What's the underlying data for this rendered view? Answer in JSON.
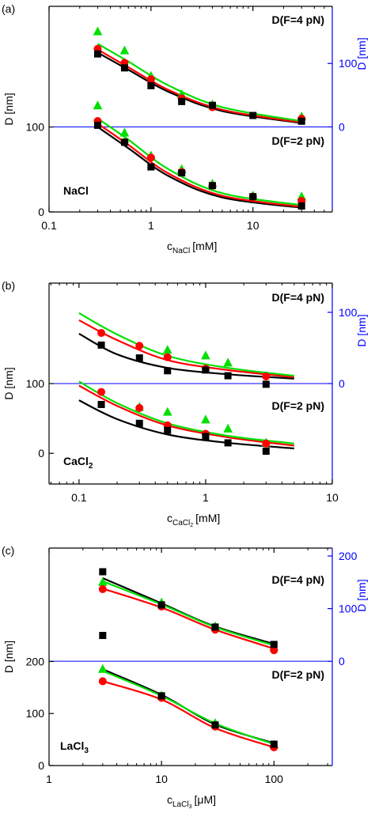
{
  "chart_data": [
    {
      "type": "scatter",
      "panel_label": "(a)",
      "xlabel": "c",
      "xlabel_sub": "NaCl",
      "xlabel_unit": "[mM]",
      "ylabel": "D [nm]",
      "y2label": "D [nm]",
      "annotations": [
        "D(F=4 pN)",
        "D(F=2 pN)"
      ],
      "salt": "NaCl",
      "salt_sub": "",
      "xscale": "log",
      "xlim": [
        0.1,
        60
      ],
      "xticks": [
        0.1,
        1,
        10
      ],
      "ylim": [
        0,
        242
      ],
      "yticks": [
        0,
        100
      ],
      "y2lim": [
        -134,
        190
      ],
      "y2ticks": [
        0,
        100
      ],
      "y2color": "#0000ff",
      "reference_line": 0,
      "series": [
        {
          "axis": "y",
          "marker": "line",
          "color": "#000000",
          "x": [
            0.3,
            0.6,
            1.5,
            5,
            30
          ],
          "values": [
            100,
            75,
            42,
            17,
            5
          ]
        },
        {
          "axis": "y",
          "marker": "line",
          "color": "#ff0000",
          "x": [
            0.3,
            0.6,
            1.5,
            5,
            30
          ],
          "values": [
            104,
            79,
            45,
            19,
            6
          ]
        },
        {
          "axis": "y",
          "marker": "line",
          "color": "#00e000",
          "x": [
            0.3,
            0.6,
            1.5,
            5,
            30
          ],
          "values": [
            110,
            85,
            50,
            22,
            8
          ]
        },
        {
          "axis": "y2",
          "marker": "line",
          "color": "#000000",
          "x": [
            0.3,
            0.6,
            1.5,
            5,
            30
          ],
          "values": [
            117,
            90,
            55,
            25,
            6
          ]
        },
        {
          "axis": "y2",
          "marker": "line",
          "color": "#ff0000",
          "x": [
            0.3,
            0.6,
            1.5,
            5,
            30
          ],
          "values": [
            122,
            94,
            58,
            27,
            7
          ]
        },
        {
          "axis": "y2",
          "marker": "line",
          "color": "#00e000",
          "x": [
            0.3,
            0.6,
            1.5,
            5,
            30
          ],
          "values": [
            131,
            103,
            65,
            31,
            9
          ]
        },
        {
          "axis": "y",
          "marker": "triangle",
          "color": "#00e000",
          "x": [
            0.3,
            0.55,
            1,
            2,
            4,
            10,
            30
          ],
          "values": [
            125,
            93,
            66,
            50,
            33,
            19,
            18
          ]
        },
        {
          "axis": "y",
          "marker": "circle",
          "color": "#ff0000",
          "x": [
            0.3,
            0.55,
            1,
            2,
            4,
            10,
            30
          ],
          "values": [
            107,
            82,
            64,
            47,
            31,
            18,
            13
          ]
        },
        {
          "axis": "y",
          "marker": "square",
          "color": "#000000",
          "x": [
            0.3,
            0.55,
            1,
            2,
            4,
            10,
            30
          ],
          "values": [
            102,
            82,
            53,
            46,
            31,
            18,
            7
          ]
        },
        {
          "axis": "y2",
          "marker": "triangle",
          "color": "#00e000",
          "x": [
            0.3,
            0.55,
            1,
            2,
            4,
            30
          ],
          "values": [
            150,
            120,
            80,
            51,
            35,
            16
          ]
        },
        {
          "axis": "y2",
          "marker": "circle",
          "color": "#ff0000",
          "x": [
            0.3,
            0.55,
            1,
            2,
            4,
            30
          ],
          "values": [
            123,
            101,
            75,
            45,
            31,
            13
          ]
        },
        {
          "axis": "y2",
          "marker": "square",
          "color": "#000000",
          "x": [
            0.3,
            0.55,
            1,
            2,
            4,
            10,
            30
          ],
          "values": [
            115,
            93,
            65,
            40,
            34,
            18,
            9
          ]
        }
      ]
    },
    {
      "type": "scatter",
      "panel_label": "(b)",
      "xlabel": "c",
      "xlabel_sub": "CaCl",
      "xlabel_subsub": "2",
      "xlabel_unit": "[mM]",
      "ylabel": "D [nm]",
      "y2label": "D [nm]",
      "annotations": [
        "D(F=4 pN)",
        "D(F=2 pN)"
      ],
      "salt": "CaCl",
      "salt_sub": "2",
      "xscale": "log",
      "xlim": [
        0.058,
        10
      ],
      "xticks": [
        0.1,
        1,
        10
      ],
      "ylim": [
        -44,
        244
      ],
      "yticks": [
        0,
        100
      ],
      "y2lim": [
        -141,
        141
      ],
      "y2ticks": [
        0,
        100
      ],
      "y2color": "#0000ff",
      "reference_line": 0,
      "series": [
        {
          "axis": "y",
          "marker": "line",
          "color": "#000000",
          "x": [
            0.1,
            0.2,
            0.5,
            1.5,
            5
          ],
          "values": [
            76,
            49,
            27,
            15,
            7
          ]
        },
        {
          "axis": "y",
          "marker": "line",
          "color": "#ff0000",
          "x": [
            0.1,
            0.2,
            0.5,
            1.5,
            5
          ],
          "values": [
            97,
            68,
            40,
            23,
            11
          ]
        },
        {
          "axis": "y",
          "marker": "line",
          "color": "#00e000",
          "x": [
            0.1,
            0.2,
            0.5,
            1.5,
            5
          ],
          "values": [
            103,
            72,
            43,
            25,
            14
          ]
        },
        {
          "axis": "y2",
          "marker": "line",
          "color": "#000000",
          "x": [
            0.1,
            0.2,
            0.5,
            1.5,
            5
          ],
          "values": [
            70,
            41,
            22,
            13,
            7
          ]
        },
        {
          "axis": "y2",
          "marker": "line",
          "color": "#ff0000",
          "x": [
            0.1,
            0.2,
            0.5,
            1.5,
            5
          ],
          "values": [
            89,
            61,
            33,
            19,
            9
          ]
        },
        {
          "axis": "y2",
          "marker": "line",
          "color": "#00e000",
          "x": [
            0.1,
            0.2,
            0.5,
            1.5,
            5
          ],
          "values": [
            99,
            69,
            39,
            22,
            11
          ]
        },
        {
          "axis": "y",
          "marker": "triangle",
          "color": "#00e000",
          "x": [
            0.3,
            0.5,
            1,
            1.5,
            3
          ],
          "values": [
            66,
            59,
            48,
            35,
            15
          ]
        },
        {
          "axis": "y",
          "marker": "circle",
          "color": "#ff0000",
          "x": [
            0.15,
            0.3,
            0.5,
            1,
            3
          ],
          "values": [
            88,
            65,
            40,
            28,
            14
          ]
        },
        {
          "axis": "y",
          "marker": "square",
          "color": "#000000",
          "x": [
            0.15,
            0.3,
            0.5,
            1,
            1.5,
            3
          ],
          "values": [
            70,
            43,
            33,
            24,
            15,
            3
          ]
        },
        {
          "axis": "y2",
          "marker": "triangle",
          "color": "#00e000",
          "x": [
            0.5,
            1,
            1.5
          ],
          "values": [
            47,
            39,
            29
          ]
        },
        {
          "axis": "y2",
          "marker": "circle",
          "color": "#ff0000",
          "x": [
            0.15,
            0.3,
            0.5,
            1,
            3
          ],
          "values": [
            71,
            53,
            37,
            21,
            10
          ]
        },
        {
          "axis": "y2",
          "marker": "square",
          "color": "#000000",
          "x": [
            0.15,
            0.3,
            0.5,
            1,
            1.5,
            3
          ],
          "values": [
            54,
            36,
            18,
            19,
            11,
            -1
          ]
        }
      ]
    },
    {
      "type": "scatter",
      "panel_label": "(c)",
      "xlabel": "c",
      "xlabel_sub": "LaCl",
      "xlabel_subsub": "3",
      "xlabel_unit": "[μM]",
      "ylabel": "D [nm]",
      "y2label": "D [nm]",
      "annotations": [
        "D(F=4 pN)",
        "D(F=2 pN)"
      ],
      "salt": "LaCl",
      "salt_sub": "3",
      "xscale": "log",
      "xlim": [
        1,
        330
      ],
      "xticks": [
        1,
        10,
        100
      ],
      "ylim": [
        0,
        418
      ],
      "yticks": [
        0,
        100,
        200
      ],
      "y2lim": [
        -198,
        215
      ],
      "y2ticks": [
        0,
        100,
        200
      ],
      "y2color": "#0000ff",
      "reference_line": 0,
      "series": [
        {
          "axis": "y",
          "marker": "line",
          "color": "#000000",
          "x": [
            3,
            10,
            30,
            100
          ],
          "values": [
            185,
            136,
            79,
            43
          ]
        },
        {
          "axis": "y",
          "marker": "line",
          "color": "#ff0000",
          "x": [
            3,
            10,
            30,
            100
          ],
          "values": [
            162,
            127,
            72,
            35
          ]
        },
        {
          "axis": "y",
          "marker": "line",
          "color": "#00e000",
          "x": [
            3,
            10,
            30,
            100
          ],
          "values": [
            182,
            134,
            81,
            41
          ]
        },
        {
          "axis": "y2",
          "marker": "line",
          "color": "#000000",
          "x": [
            3,
            10,
            30,
            100
          ],
          "values": [
            158,
            110,
            66,
            33
          ]
        },
        {
          "axis": "y2",
          "marker": "line",
          "color": "#ff0000",
          "x": [
            3,
            10,
            30,
            100
          ],
          "values": [
            138,
            102,
            60,
            24
          ]
        },
        {
          "axis": "y2",
          "marker": "line",
          "color": "#00e000",
          "x": [
            3,
            10,
            30,
            100
          ],
          "values": [
            152,
            108,
            65,
            30
          ]
        },
        {
          "axis": "y",
          "marker": "triangle",
          "color": "#00e000",
          "x": [
            3,
            10,
            30,
            100
          ],
          "values": [
            185,
            134,
            81,
            40
          ]
        },
        {
          "axis": "y",
          "marker": "circle",
          "color": "#ff0000",
          "x": [
            3,
            10,
            30,
            100
          ],
          "values": [
            162,
            130,
            75,
            35
          ]
        },
        {
          "axis": "y",
          "marker": "square",
          "color": "#000000",
          "x": [
            3,
            10,
            30,
            100
          ],
          "values": [
            250,
            134,
            78,
            41
          ]
        },
        {
          "axis": "y2",
          "marker": "triangle",
          "color": "#00e000",
          "x": [
            3,
            10,
            30,
            100
          ],
          "values": [
            150,
            111,
            66,
            27
          ]
        },
        {
          "axis": "y2",
          "marker": "circle",
          "color": "#ff0000",
          "x": [
            3,
            10,
            30,
            100
          ],
          "values": [
            137,
            104,
            60,
            21
          ]
        },
        {
          "axis": "y2",
          "marker": "square",
          "color": "#000000",
          "x": [
            3,
            10,
            30,
            100
          ],
          "values": [
            170,
            107,
            65,
            32
          ]
        }
      ]
    }
  ]
}
